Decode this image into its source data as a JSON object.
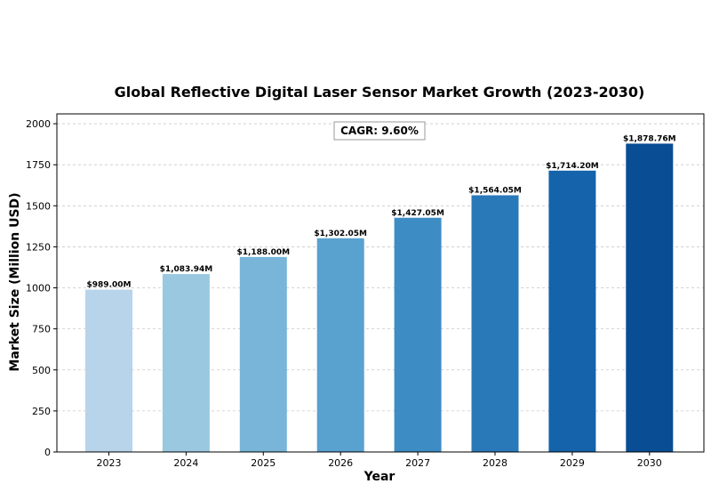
{
  "chart_data": {
    "type": "bar",
    "title": "Global Reflective Digital Laser Sensor Market Growth (2023-2030)",
    "xlabel": "Year",
    "ylabel": "Market Size (Million USD)",
    "categories": [
      "2023",
      "2024",
      "2025",
      "2026",
      "2027",
      "2028",
      "2029",
      "2030"
    ],
    "values": [
      989.0,
      1083.94,
      1188.0,
      1302.05,
      1427.05,
      1564.05,
      1714.2,
      1878.76
    ],
    "data_labels": [
      "$989.00M",
      "$1,083.94M",
      "$1,188.00M",
      "$1,302.05M",
      "$1,427.05M",
      "$1,564.05M",
      "$1,714.20M",
      "$1,878.76M"
    ],
    "colors": [
      "#b7d4ea",
      "#9ac8e0",
      "#78b5d8",
      "#59a1cf",
      "#3d8dc4",
      "#2979b9",
      "#1563aa",
      "#094d94"
    ],
    "ylim": [
      0,
      2060
    ],
    "yticks": [
      0,
      250,
      500,
      750,
      1000,
      1250,
      1500,
      1750,
      2000
    ],
    "grid": "y-dashed",
    "annotation": "CAGR: 9.60%"
  }
}
